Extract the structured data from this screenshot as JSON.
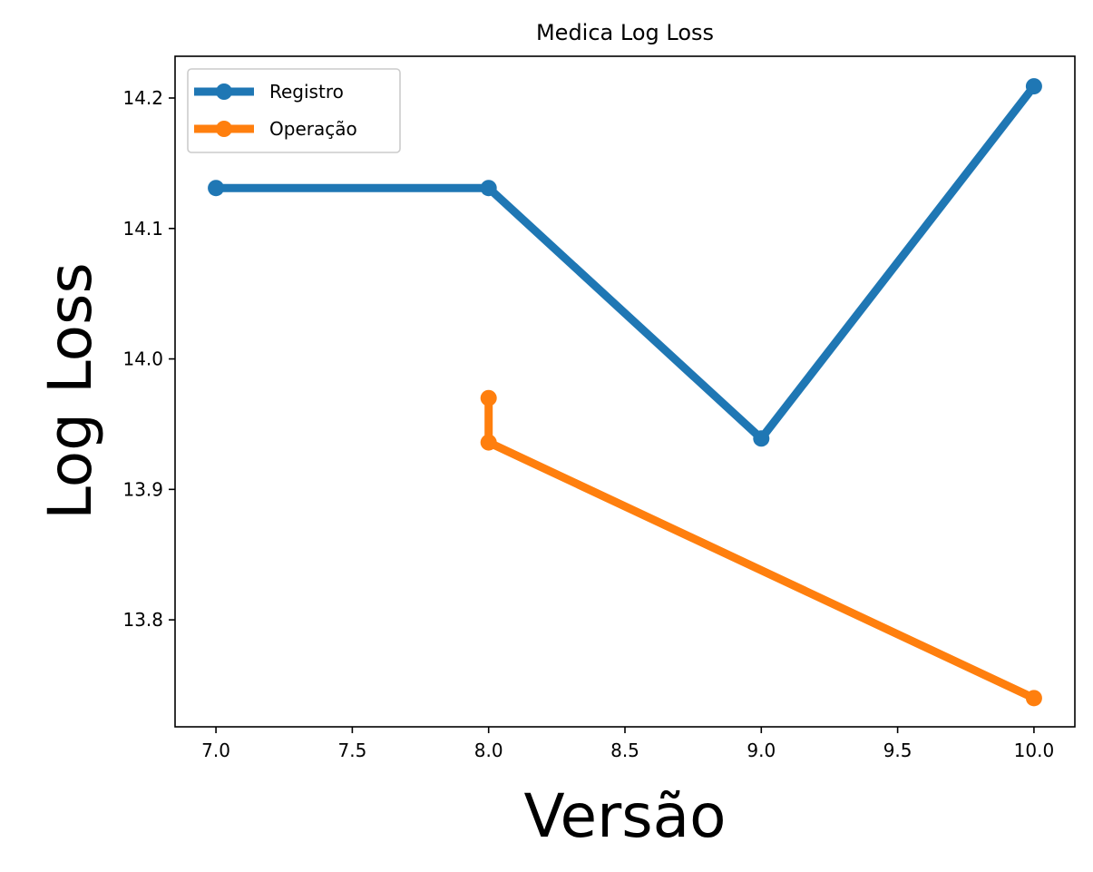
{
  "chart_data": {
    "type": "line",
    "title": "Medica Log Loss",
    "xlabel": "Versão",
    "ylabel": "Log Loss",
    "xlim": [
      6.85,
      10.15
    ],
    "ylim": [
      13.718,
      14.232
    ],
    "xticks": [
      "7.0",
      "7.5",
      "8.0",
      "8.5",
      "9.0",
      "9.5",
      "10.0"
    ],
    "yticks": [
      "13.8",
      "13.9",
      "14.0",
      "14.1",
      "14.2"
    ],
    "grid": false,
    "legend_position": "upper-left",
    "series": [
      {
        "name": "Registro",
        "color": "#1f77b4",
        "x": [
          7,
          8,
          9,
          10
        ],
        "y": [
          14.131,
          14.131,
          13.939,
          14.209
        ]
      },
      {
        "name": "Operação",
        "color": "#ff7f0e",
        "x": [
          8,
          8,
          10
        ],
        "y": [
          13.97,
          13.936,
          13.74
        ]
      }
    ]
  }
}
